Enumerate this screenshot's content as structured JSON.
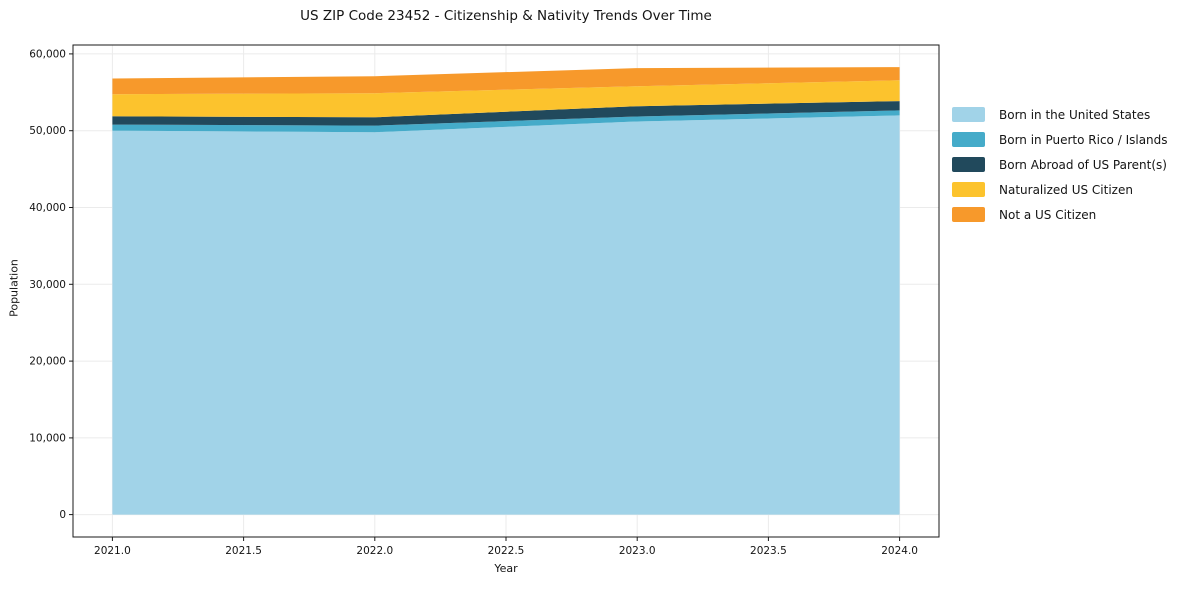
{
  "chart_data": {
    "type": "area",
    "stacked": true,
    "title": "US ZIP Code 23452 - Citizenship & Nativity Trends Over Time",
    "xlabel": "Year",
    "ylabel": "Population",
    "x": [
      2021,
      2022,
      2023,
      2024
    ],
    "series": [
      {
        "name": "Born in the United States",
        "color": "#a1d3e8",
        "values": [
          50000,
          49800,
          51200,
          52000
        ]
      },
      {
        "name": "Born in Puerto Rico / Islands",
        "color": "#45abc9",
        "values": [
          800,
          870,
          650,
          650
        ]
      },
      {
        "name": "Born Abroad of US Parent(s)",
        "color": "#21495c",
        "values": [
          1080,
          1080,
          1340,
          1210
        ]
      },
      {
        "name": "Naturalized US Citizen",
        "color": "#fcc32d",
        "values": [
          2870,
          3130,
          2610,
          2700
        ]
      },
      {
        "name": "Not a US Citizen",
        "color": "#f7992b",
        "values": [
          2050,
          2220,
          2350,
          1730
        ]
      }
    ],
    "x_ticks": [
      2021.0,
      2021.5,
      2022.0,
      2022.5,
      2023.0,
      2023.5,
      2024.0
    ],
    "x_tick_labels": [
      "2021.0",
      "2021.5",
      "2022.0",
      "2022.5",
      "2023.0",
      "2023.5",
      "2024.0"
    ],
    "y_ticks": [
      0,
      10000,
      20000,
      30000,
      40000,
      50000,
      60000
    ],
    "y_tick_labels": [
      "0",
      "10,000",
      "20,000",
      "30,000",
      "40,000",
      "50,000",
      "60,000"
    ],
    "xlim": [
      2020.85,
      2024.15
    ],
    "ylim": [
      -2912,
      61162
    ],
    "grid": true,
    "legend_position": "center-right-outside",
    "colors": {
      "grid": "#ebebeb",
      "spine": "#1a1a1a",
      "tick_label": "#141414"
    }
  }
}
